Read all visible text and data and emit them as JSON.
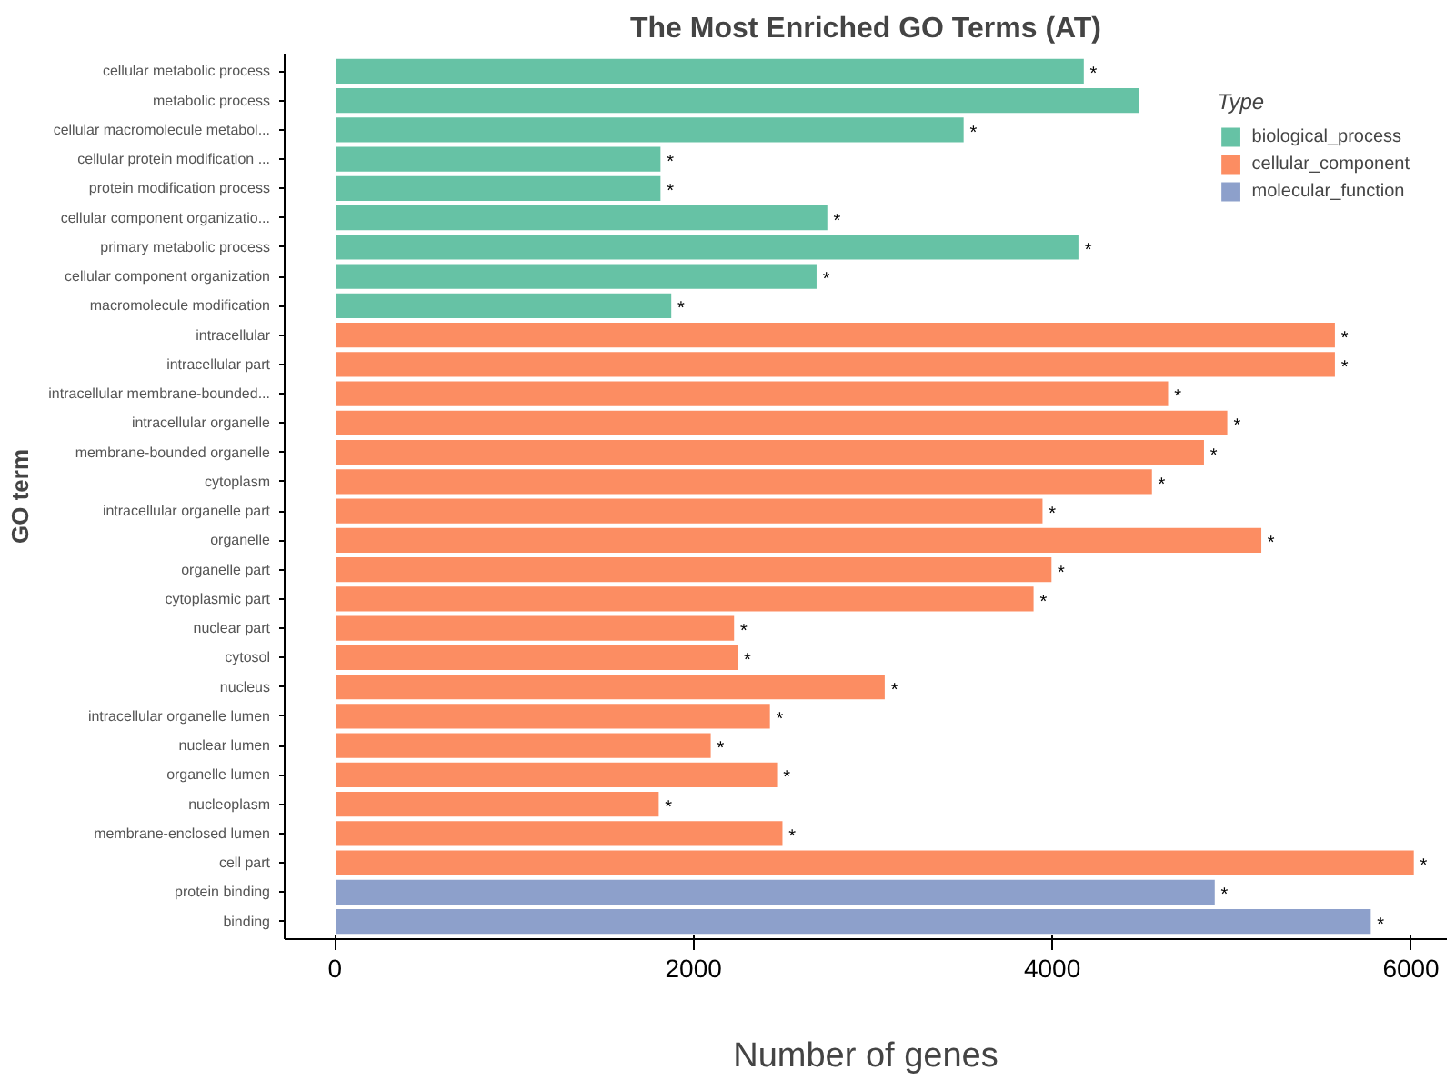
{
  "chart_data": {
    "type": "bar",
    "orientation": "horizontal",
    "title": "The Most Enriched GO Terms (AT)",
    "xlabel": "Number of genes",
    "ylabel": "GO term",
    "legend_title": "Type",
    "legend": "top right",
    "grid": false,
    "categories": [
      "cellular metabolic process",
      "metabolic process",
      "cellular macromolecule metabol...",
      "cellular protein modification ...",
      "protein modification process",
      "cellular component organizatio...",
      "primary metabolic process",
      "cellular component organization",
      "macromolecule modification",
      "intracellular",
      "intracellular part",
      "intracellular membrane-bounded...",
      "intracellular organelle",
      "membrane-bounded organelle",
      "cytoplasm",
      "intracellular organelle part",
      "organelle",
      "organelle part",
      "cytoplasmic part",
      "nuclear part",
      "cytosol",
      "nucleus",
      "intracellular organelle lumen",
      "nuclear lumen",
      "organelle lumen",
      "nucleoplasm",
      "membrane-enclosed lumen",
      "cell part",
      "protein binding",
      "binding"
    ],
    "xlim": [
      -280,
      6200
    ],
    "xticks": [
      0,
      2000,
      4000,
      6000
    ],
    "series": [
      {
        "name": "biological_process",
        "color": "#66c2a5",
        "values": [
          4180,
          4490,
          3510,
          1820,
          1820,
          2750,
          4150,
          2690,
          1880,
          null,
          null,
          null,
          null,
          null,
          null,
          null,
          null,
          null,
          null,
          null,
          null,
          null,
          null,
          null,
          null,
          null,
          null,
          null,
          null,
          null
        ],
        "value_labels": [
          "*",
          null,
          "*",
          "*",
          "*",
          "*",
          "*",
          "*",
          "*",
          null,
          null,
          null,
          null,
          null,
          null,
          null,
          null,
          null,
          null,
          null,
          null,
          null,
          null,
          null,
          null,
          null,
          null,
          null,
          null,
          null
        ]
      },
      {
        "name": "cellular_component",
        "color": "#fc8d62",
        "values": [
          null,
          null,
          null,
          null,
          null,
          null,
          null,
          null,
          null,
          5580,
          5580,
          4650,
          4980,
          4850,
          4560,
          3950,
          5170,
          4000,
          3900,
          2230,
          2250,
          3070,
          2430,
          2100,
          2470,
          1810,
          2500,
          6020,
          null,
          null
        ],
        "value_labels": [
          null,
          null,
          null,
          null,
          null,
          null,
          null,
          null,
          null,
          "*",
          "*",
          "*",
          "*",
          "*",
          "*",
          "*",
          "*",
          "*",
          "*",
          "*",
          "*",
          "*",
          "*",
          "*",
          "*",
          "*",
          "*",
          "*",
          null,
          null
        ]
      },
      {
        "name": "molecular_function",
        "color": "#8da0cb",
        "values": [
          null,
          null,
          null,
          null,
          null,
          null,
          null,
          null,
          null,
          null,
          null,
          null,
          null,
          null,
          null,
          null,
          null,
          null,
          null,
          null,
          null,
          null,
          null,
          null,
          null,
          null,
          null,
          null,
          4910,
          5780
        ],
        "value_labels": [
          null,
          null,
          null,
          null,
          null,
          null,
          null,
          null,
          null,
          null,
          null,
          null,
          null,
          null,
          null,
          null,
          null,
          null,
          null,
          null,
          null,
          null,
          null,
          null,
          null,
          null,
          null,
          null,
          "*",
          "*"
        ]
      }
    ]
  }
}
